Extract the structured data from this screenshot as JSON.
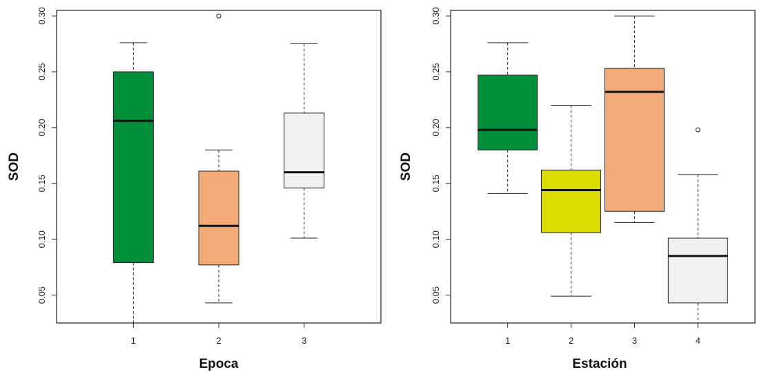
{
  "chart_data": [
    {
      "type": "boxplot",
      "xlabel": "Epoca",
      "ylabel": "SOD",
      "categories": [
        "1",
        "2",
        "3"
      ],
      "ylim": [
        0.025,
        0.305
      ],
      "yticks": [
        "0.05",
        "0.10",
        "0.15",
        "0.20",
        "0.25",
        "0.30"
      ],
      "ytick_values": [
        0.05,
        0.1,
        0.15,
        0.2,
        0.25,
        0.3
      ],
      "boxes": [
        {
          "category": "1",
          "min": 0.025,
          "q1": 0.079,
          "median": 0.206,
          "q3": 0.25,
          "max": 0.276,
          "outliers": [],
          "color": "#008f39"
        },
        {
          "category": "2",
          "min": 0.043,
          "q1": 0.077,
          "median": 0.112,
          "q3": 0.161,
          "max": 0.18,
          "outliers": [
            0.3
          ],
          "color": "#f4aa76"
        },
        {
          "category": "3",
          "min": 0.101,
          "q1": 0.146,
          "median": 0.16,
          "q3": 0.213,
          "max": 0.275,
          "outliers": [],
          "color": "#f0f0f2"
        }
      ],
      "grid": false
    },
    {
      "type": "boxplot",
      "xlabel": "Estación",
      "ylabel": "SOD",
      "categories": [
        "1",
        "2",
        "3",
        "4"
      ],
      "ylim": [
        0.025,
        0.305
      ],
      "yticks": [
        "0.05",
        "0.10",
        "0.15",
        "0.20",
        "0.25",
        "0.30"
      ],
      "ytick_values": [
        0.05,
        0.1,
        0.15,
        0.2,
        0.25,
        0.3
      ],
      "boxes": [
        {
          "category": "1",
          "min": 0.141,
          "q1": 0.18,
          "median": 0.198,
          "q3": 0.247,
          "max": 0.276,
          "outliers": [],
          "color": "#008f39"
        },
        {
          "category": "2",
          "min": 0.049,
          "q1": 0.106,
          "median": 0.144,
          "q3": 0.162,
          "max": 0.22,
          "outliers": [],
          "color": "#dddd00"
        },
        {
          "category": "3",
          "min": 0.115,
          "q1": 0.125,
          "median": 0.232,
          "q3": 0.253,
          "max": 0.3,
          "outliers": [],
          "color": "#f4aa76"
        },
        {
          "category": "4",
          "min": 0.025,
          "q1": 0.043,
          "median": 0.085,
          "q3": 0.101,
          "max": 0.158,
          "outliers": [
            0.198
          ],
          "color": "#f0f0f2"
        }
      ],
      "grid": false
    }
  ]
}
